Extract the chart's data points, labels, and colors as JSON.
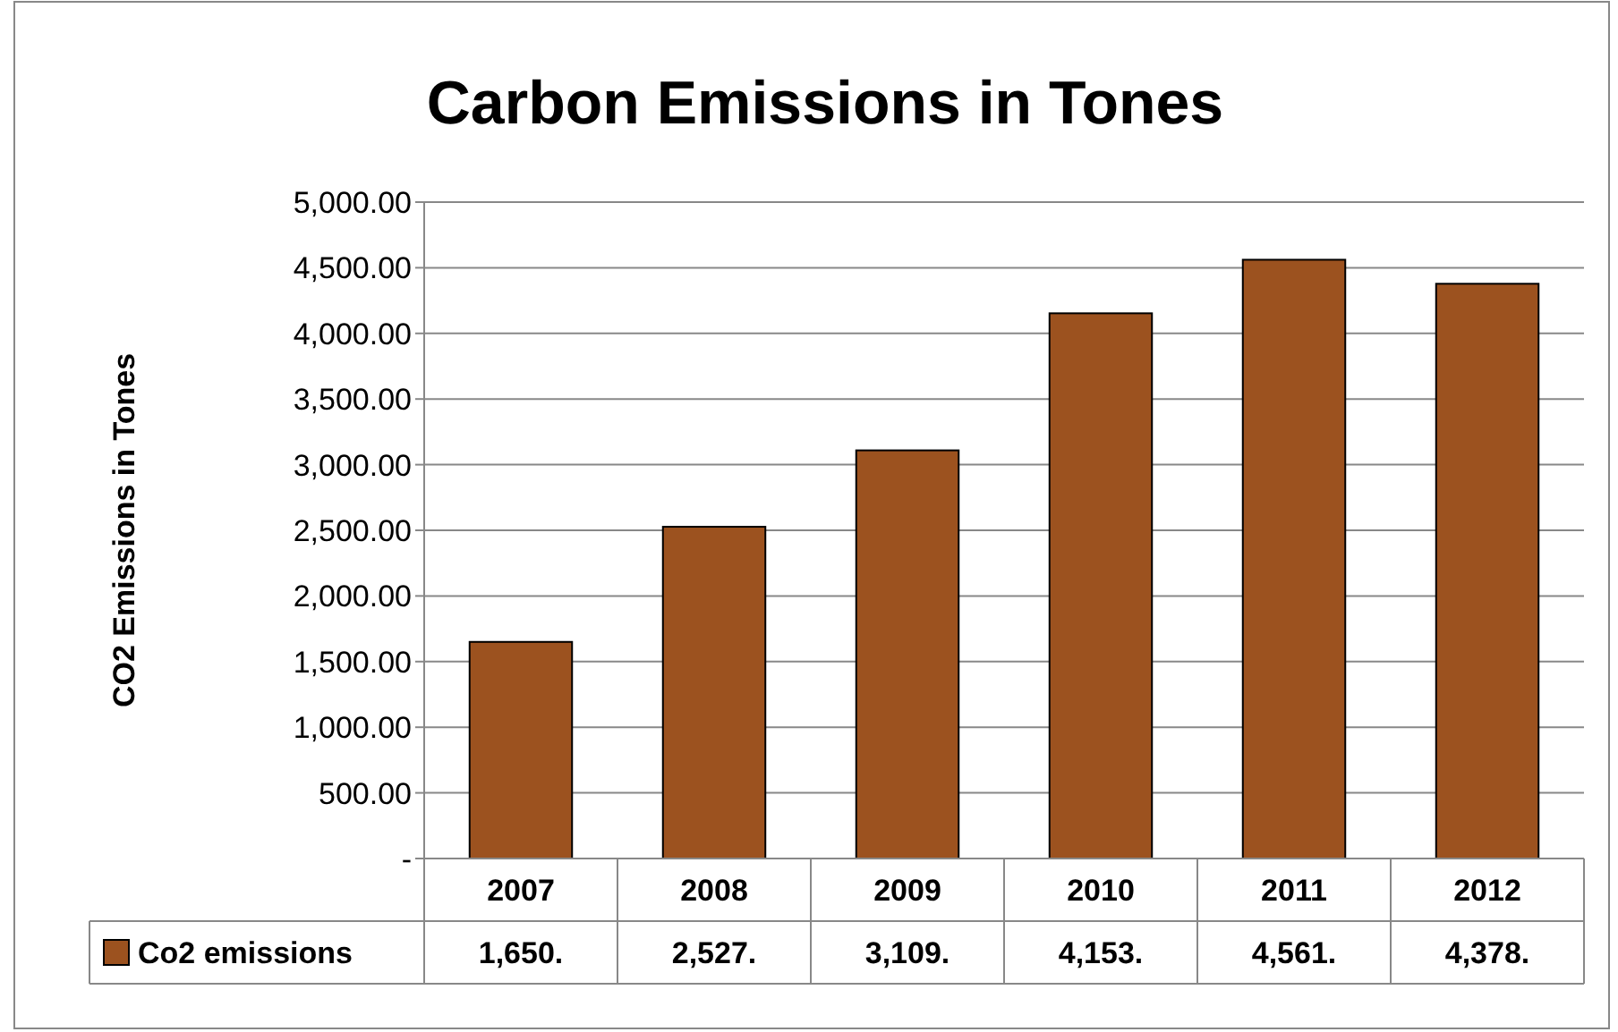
{
  "chart_data": {
    "type": "bar",
    "title": "Carbon Emissions in Tones",
    "ylabel": "CO2 Emissions in Tones",
    "categories": [
      "2007",
      "2008",
      "2009",
      "2010",
      "2011",
      "2012"
    ],
    "series": [
      {
        "name": "Co2 emissions",
        "color": "#9c521f",
        "values": [
          1650,
          2527,
          3109,
          4153,
          4561,
          4378
        ],
        "value_labels": [
          "1,650.",
          "2,527.",
          "3,109.",
          "4,153.",
          "4,561.",
          "4,378."
        ]
      }
    ],
    "ylim": [
      0,
      5000
    ],
    "yticks": [
      {
        "value": 0,
        "label": "-"
      },
      {
        "value": 500,
        "label": "500.00"
      },
      {
        "value": 1000,
        "label": "1,000.00"
      },
      {
        "value": 1500,
        "label": "1,500.00"
      },
      {
        "value": 2000,
        "label": "2,000.00"
      },
      {
        "value": 2500,
        "label": "2,500.00"
      },
      {
        "value": 3000,
        "label": "3,000.00"
      },
      {
        "value": 3500,
        "label": "3,500.00"
      },
      {
        "value": 4000,
        "label": "4,000.00"
      },
      {
        "value": 4500,
        "label": "4,500.00"
      },
      {
        "value": 5000,
        "label": "5,000.00"
      }
    ],
    "grid": "y",
    "legend": "bottom left"
  }
}
